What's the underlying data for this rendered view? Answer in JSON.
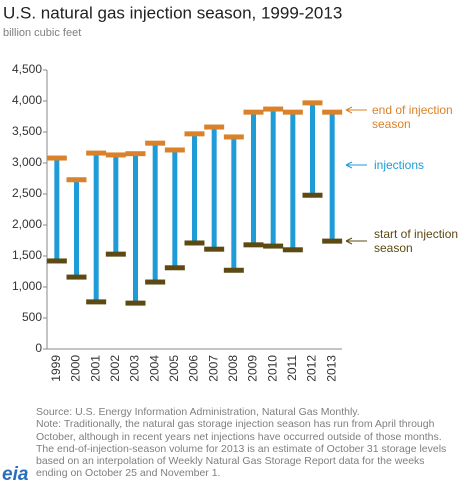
{
  "chart_data": {
    "type": "range",
    "title": "U.S. natural gas injection season, 1999-2013",
    "subtitle": "billion cubic feet",
    "categories": [
      "1999",
      "2000",
      "2001",
      "2002",
      "2003",
      "2004",
      "2005",
      "2006",
      "2007",
      "2008",
      "2009",
      "2010",
      "2011",
      "2012",
      "2013"
    ],
    "series": [
      {
        "name": "start of injection season",
        "color": "#5c4a12",
        "values": [
          1420,
          1160,
          760,
          1530,
          740,
          1080,
          1310,
          1710,
          1610,
          1270,
          1680,
          1660,
          1600,
          2480,
          1740
        ]
      },
      {
        "name": "end of injection season",
        "color": "#d9822b",
        "values": [
          3080,
          2730,
          3160,
          3130,
          3150,
          3320,
          3210,
          3470,
          3580,
          3420,
          3820,
          3870,
          3820,
          3970,
          3820
        ]
      }
    ],
    "range_name": "injections",
    "range_color": "#1f9bd7",
    "ylim": [
      0,
      4500
    ],
    "yticks": [
      0,
      {
        "value": 500,
        "label": "500"
      },
      {
        "value": 1000,
        "label": "1,000"
      },
      {
        "value": 1500,
        "label": "1,500"
      },
      {
        "value": 2000,
        "label": "2,000"
      },
      {
        "value": 2500,
        "label": "2,500"
      },
      {
        "value": 3000,
        "label": "3,000"
      },
      {
        "value": 3500,
        "label": "3,500"
      },
      {
        "value": 4000,
        "label": "4,000"
      },
      {
        "value": 4500,
        "label": "4,500"
      }
    ],
    "grid": false,
    "source": "Source: U.S. Energy Information Administration, Natural Gas Monthly.",
    "notes": [
      "Note: Traditionally, the natural gas storage injection season has run from April through",
      "October, although in recent years net injections have occurred outside of those months.",
      "The end-of-injection-season  volume for 2013 is an estimate of October 31 storage levels",
      " based on an interpolation of Weekly Natural Gas Storage Report data for the weeks",
      " ending on October 25 and November 1."
    ],
    "logo": "eia"
  }
}
